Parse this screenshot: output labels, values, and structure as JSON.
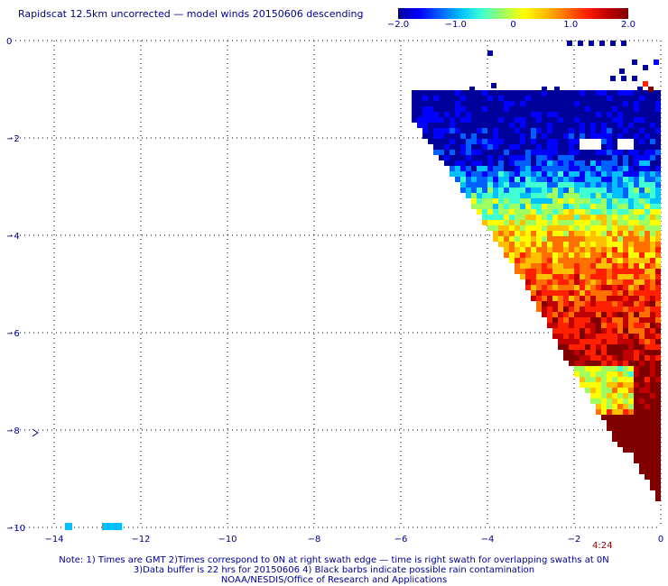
{
  "title": "Rapidscat 12.5km uncorrected — model winds 20150606 descending",
  "colorbar": {
    "colors": [
      "#00009a",
      "#0000ff",
      "#0060ff",
      "#00c0ff",
      "#40ffd0",
      "#a0ff60",
      "#ffff00",
      "#ffc000",
      "#ff7000",
      "#ff2000",
      "#c00000",
      "#800000"
    ],
    "ticks": [
      {
        "value": -2.0,
        "label": "−2.0"
      },
      {
        "value": -1.0,
        "label": "−1.0"
      },
      {
        "value": 0,
        "label": "0"
      },
      {
        "value": 1.0,
        "label": "1.0"
      },
      {
        "value": 2.0,
        "label": "2.0"
      }
    ],
    "range": [
      -2.0,
      2.0
    ]
  },
  "axes": {
    "xlim": [
      -15,
      0
    ],
    "ylim": [
      -10,
      0
    ],
    "xticks": [
      -14,
      -12,
      -10,
      -8,
      -6,
      -4,
      -2,
      0
    ],
    "xtick_labels": [
      "−14",
      "−12",
      "−10",
      "−8",
      "−6",
      "−4",
      "−2",
      "0"
    ],
    "yticks": [
      0,
      -2,
      -4,
      -6,
      -8,
      -10
    ],
    "ytick_labels": [
      "0",
      "−2",
      "−4",
      "−6",
      "−8",
      "−10"
    ],
    "grid": true
  },
  "swath_time": "4:24",
  "notes": {
    "line1": "Note: 1) Times are GMT 2)Times correspond to 0N at right swath edge — time is right swath for overlapping swaths at 0N",
    "line2": "3)Data buffer is 22 hrs for 20150606 4) Black barbs indicate possible rain contamination",
    "line3": "NOAA/NESDIS/Office of Research and Applications"
  }
}
